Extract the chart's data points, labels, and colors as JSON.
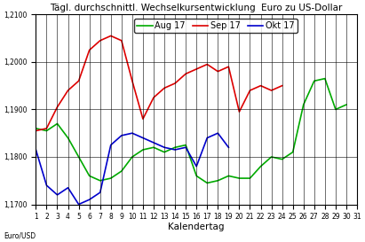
{
  "title": "Tägl. durchschnittl. Wechselkursentwicklung  Euro zu US-Dollar",
  "xlabel": "Kalendertag",
  "ylabel_text": "Euro/USD",
  "ylim": [
    1.17,
    1.21
  ],
  "yticks": [
    1.17,
    1.18,
    1.19,
    1.2,
    1.21
  ],
  "ytick_labels": [
    "1,1700",
    "1,1800",
    "1,1900",
    "1,2000",
    "1,2100"
  ],
  "days": [
    1,
    2,
    3,
    4,
    5,
    6,
    7,
    8,
    9,
    10,
    11,
    12,
    13,
    14,
    15,
    16,
    17,
    18,
    19,
    20,
    21,
    22,
    23,
    24,
    25,
    26,
    27,
    28,
    29,
    30,
    31
  ],
  "aug17": [
    1.186,
    1.1855,
    1.187,
    1.184,
    1.18,
    1.176,
    1.175,
    1.1755,
    1.177,
    1.18,
    1.1815,
    1.182,
    1.181,
    1.182,
    1.1825,
    1.176,
    1.1745,
    1.175,
    1.176,
    1.1755,
    1.1755,
    1.178,
    1.18,
    1.1795,
    1.181,
    1.191,
    1.196,
    1.1965,
    1.19,
    1.191,
    null
  ],
  "sep17": [
    1.1855,
    1.186,
    1.1905,
    1.194,
    1.196,
    1.2025,
    1.2045,
    1.2055,
    1.2045,
    1.196,
    1.188,
    1.1925,
    1.1945,
    1.1955,
    1.1975,
    1.1985,
    1.1995,
    1.198,
    1.199,
    1.1895,
    1.194,
    1.195,
    1.194,
    1.195,
    null,
    null,
    null,
    null,
    null,
    null,
    null
  ],
  "okt17": [
    1.1815,
    1.174,
    1.172,
    1.1735,
    1.17,
    1.171,
    1.1725,
    1.1825,
    1.1845,
    1.185,
    1.184,
    1.183,
    1.182,
    1.1815,
    1.182,
    1.178,
    1.184,
    1.185,
    1.182,
    null,
    null,
    null,
    null,
    null,
    null,
    null,
    null,
    null,
    null,
    null,
    null
  ],
  "aug_color": "#00aa00",
  "sep_color": "#dd0000",
  "okt_color": "#0000cc",
  "legend_labels": [
    "Aug 17",
    "Sep 17",
    "Okt 17"
  ],
  "bg_color": "#ffffff",
  "grid_color": "#000000",
  "linewidth": 1.2,
  "title_fontsize": 7.5,
  "tick_fontsize": 5.5,
  "xlabel_fontsize": 7.5,
  "legend_fontsize": 7.0
}
